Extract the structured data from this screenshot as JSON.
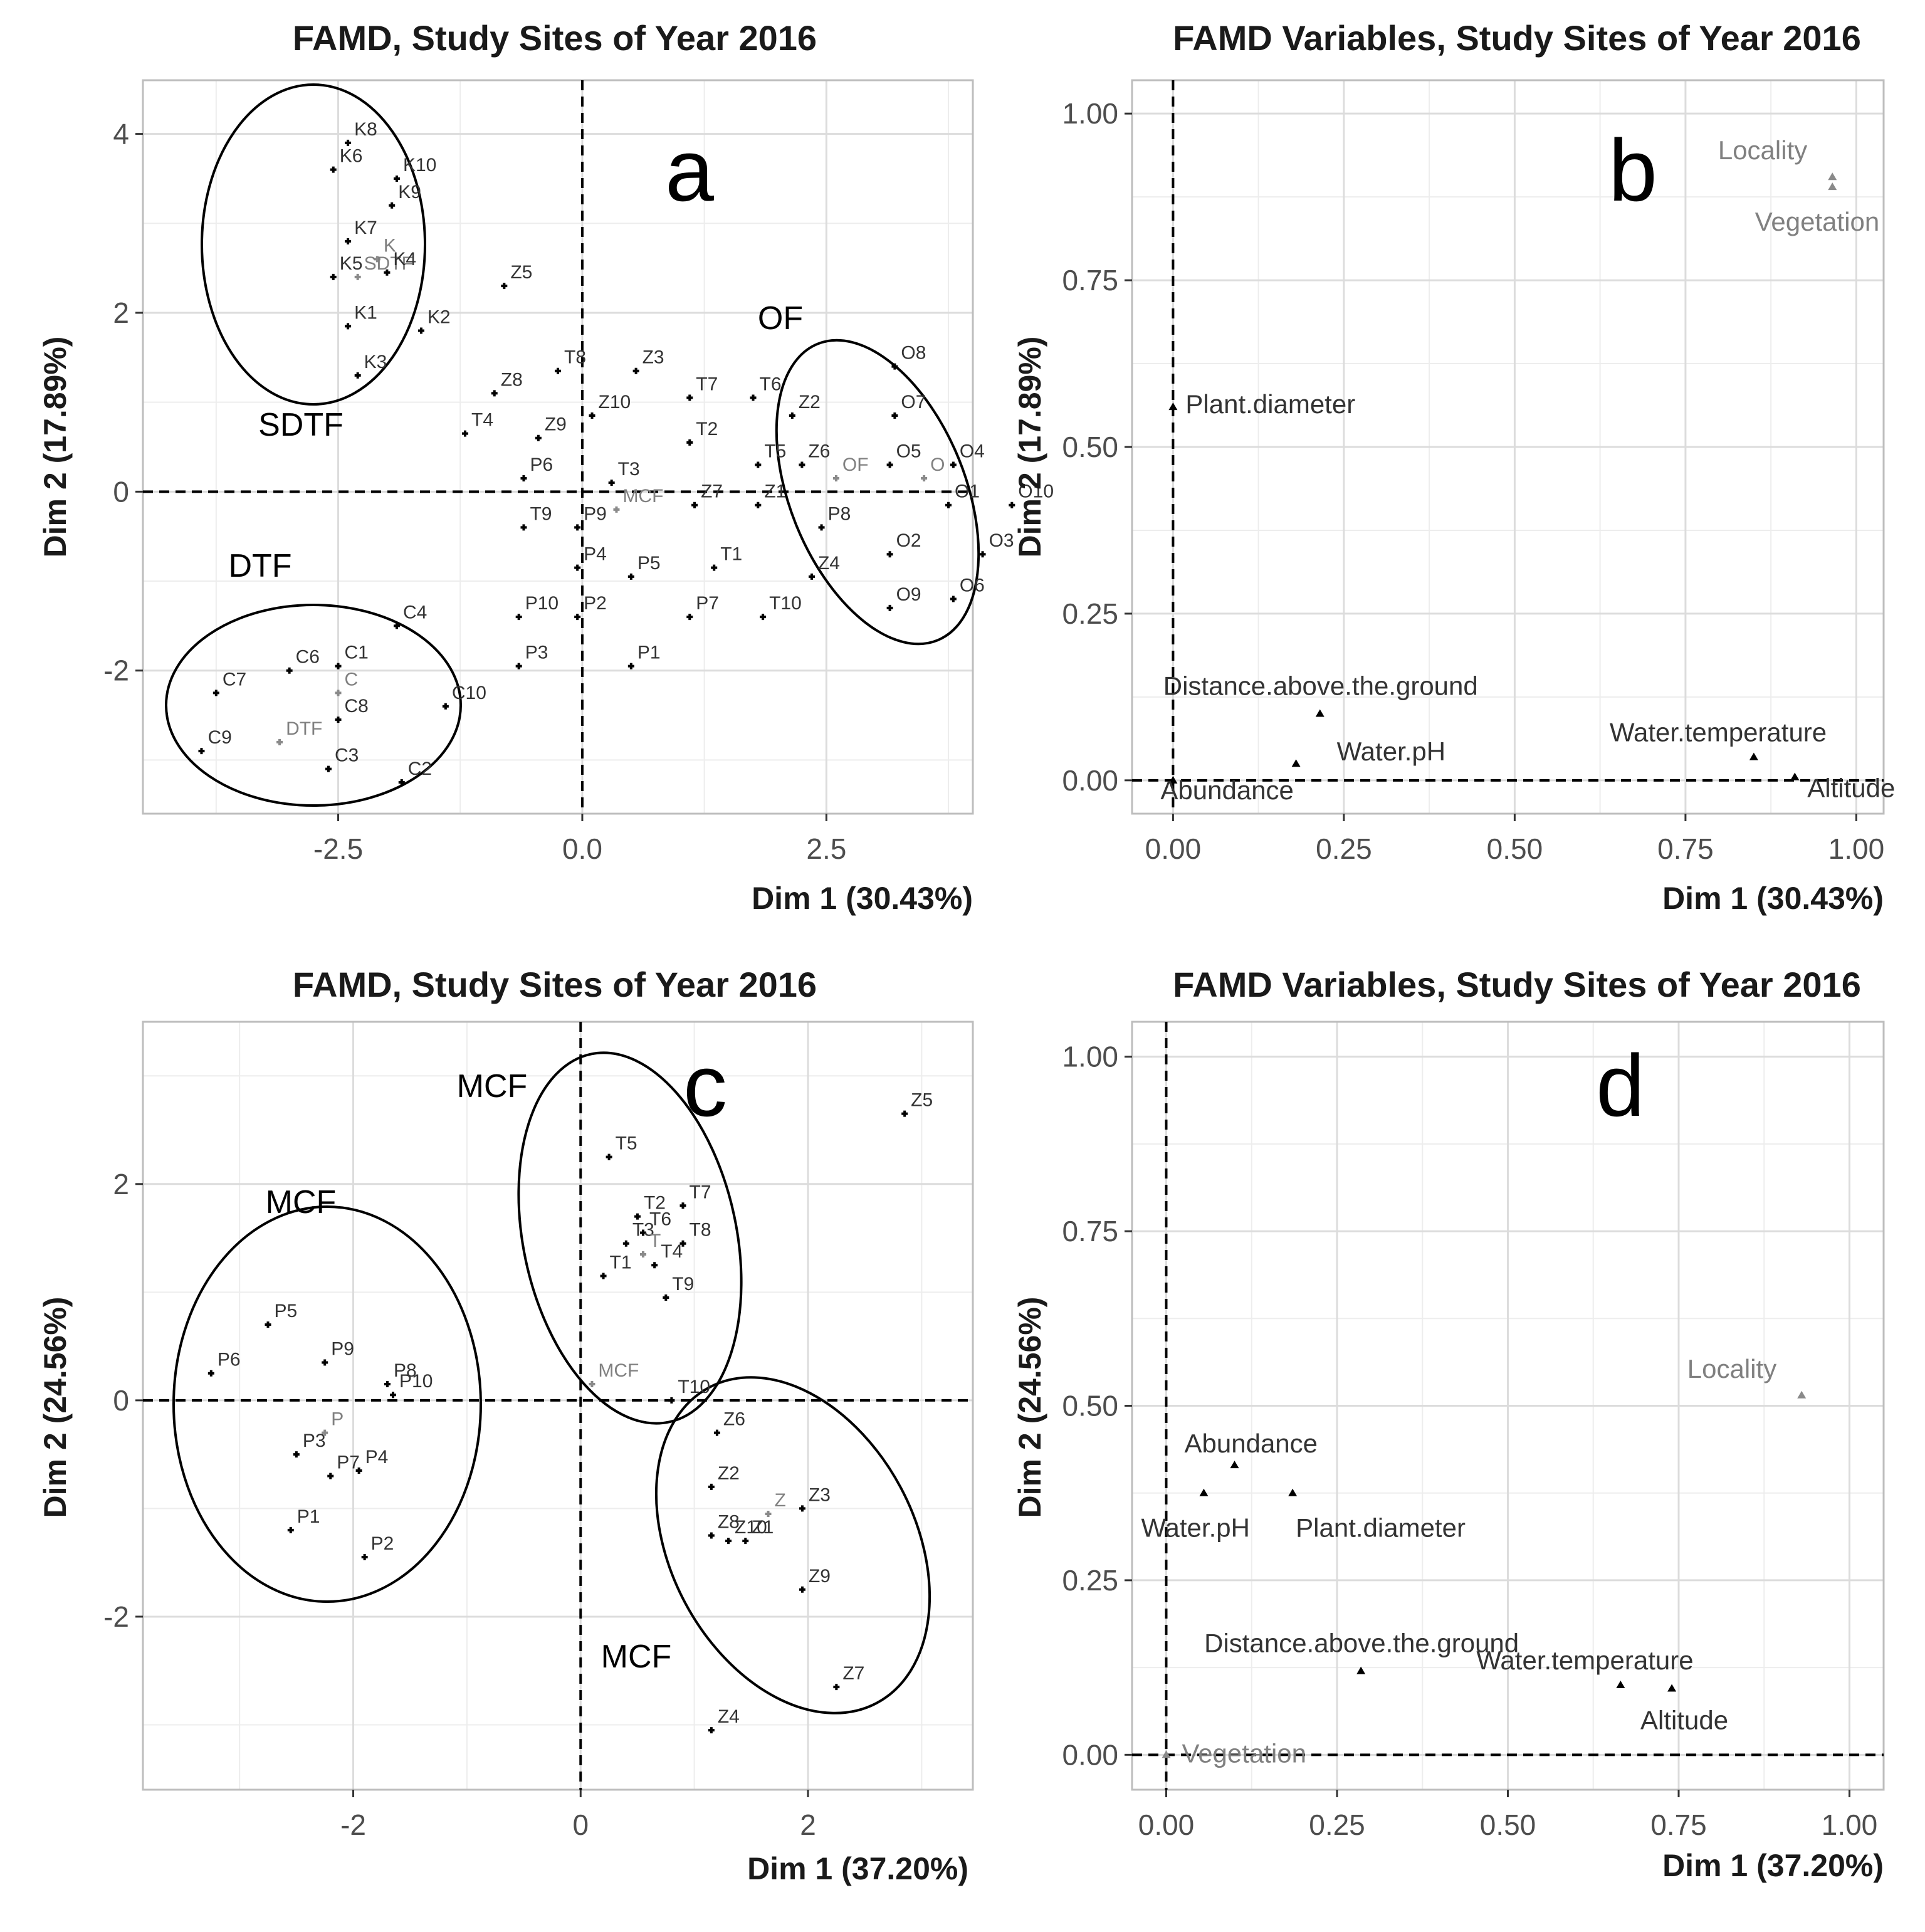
{
  "figure": "FAMD biplots, study sites of year 2016",
  "chart_data": [
    {
      "panel": "a",
      "type": "scatter",
      "title": "FAMD, Study Sites of Year 2016",
      "xlabel": "Dim 1 (30.43%)",
      "ylabel": "Dim 2 (17.89%)",
      "xlim": [
        -4.5,
        4.0
      ],
      "ylim": [
        -3.6,
        4.6
      ],
      "xticks": [
        -2.5,
        0.0,
        2.5
      ],
      "xtick_labels": [
        "-2.5",
        "0.0",
        "2.5"
      ],
      "yticks": [
        -2,
        0,
        2,
        4
      ],
      "ytick_labels": [
        "-2",
        "0",
        "2",
        "4"
      ],
      "grid": true,
      "panel_letter": "a",
      "points": [
        {
          "label": "K8",
          "x": -2.4,
          "y": 3.9
        },
        {
          "label": "K6",
          "x": -2.55,
          "y": 3.6
        },
        {
          "label": "K10",
          "x": -1.9,
          "y": 3.5
        },
        {
          "label": "K9",
          "x": -1.95,
          "y": 3.2
        },
        {
          "label": "K7",
          "x": -2.4,
          "y": 2.8
        },
        {
          "label": "K",
          "x": -2.1,
          "y": 2.6,
          "grey": true
        },
        {
          "label": "K5",
          "x": -2.55,
          "y": 2.4
        },
        {
          "label": "SDTF",
          "x": -2.3,
          "y": 2.4,
          "grey": true
        },
        {
          "label": "K4",
          "x": -2.0,
          "y": 2.45
        },
        {
          "label": "K1",
          "x": -2.4,
          "y": 1.85
        },
        {
          "label": "K2",
          "x": -1.65,
          "y": 1.8
        },
        {
          "label": "K3",
          "x": -2.3,
          "y": 1.3
        },
        {
          "label": "Z5",
          "x": -0.8,
          "y": 2.3
        },
        {
          "label": "OF",
          "x": 2.6,
          "y": 0.15,
          "grey": true
        },
        {
          "label": "O8",
          "x": 3.2,
          "y": 1.4
        },
        {
          "label": "O7",
          "x": 3.2,
          "y": 0.85
        },
        {
          "label": "O5",
          "x": 3.15,
          "y": 0.3
        },
        {
          "label": "O",
          "x": 3.5,
          "y": 0.15,
          "grey": true
        },
        {
          "label": "O4",
          "x": 3.8,
          "y": 0.3
        },
        {
          "label": "O1",
          "x": 3.75,
          "y": -0.15
        },
        {
          "label": "O10",
          "x": 4.4,
          "y": -0.15
        },
        {
          "label": "O2",
          "x": 3.15,
          "y": -0.7
        },
        {
          "label": "O3",
          "x": 4.1,
          "y": -0.7
        },
        {
          "label": "O9",
          "x": 3.15,
          "y": -1.3
        },
        {
          "label": "O6",
          "x": 3.8,
          "y": -1.2
        },
        {
          "label": "T8",
          "x": -0.25,
          "y": 1.35
        },
        {
          "label": "Z3",
          "x": 0.55,
          "y": 1.35
        },
        {
          "label": "T7",
          "x": 1.1,
          "y": 1.05
        },
        {
          "label": "T6",
          "x": 1.75,
          "y": 1.05
        },
        {
          "label": "Z8",
          "x": -0.9,
          "y": 1.1
        },
        {
          "label": "Z10",
          "x": 0.1,
          "y": 0.85
        },
        {
          "label": "Z2",
          "x": 2.15,
          "y": 0.85
        },
        {
          "label": "T4",
          "x": -1.2,
          "y": 0.65
        },
        {
          "label": "Z9",
          "x": -0.45,
          "y": 0.6
        },
        {
          "label": "T2",
          "x": 1.1,
          "y": 0.55
        },
        {
          "label": "T5",
          "x": 1.8,
          "y": 0.3
        },
        {
          "label": "Z6",
          "x": 2.25,
          "y": 0.3
        },
        {
          "label": "P6",
          "x": -0.6,
          "y": 0.15
        },
        {
          "label": "T3",
          "x": 0.3,
          "y": 0.1
        },
        {
          "label": "MCF",
          "x": 0.35,
          "y": -0.2,
          "grey": true
        },
        {
          "label": "Z7",
          "x": 1.15,
          "y": -0.15
        },
        {
          "label": "Z1",
          "x": 1.8,
          "y": -0.15
        },
        {
          "label": "P8",
          "x": 2.45,
          "y": -0.4
        },
        {
          "label": "T9",
          "x": -0.6,
          "y": -0.4
        },
        {
          "label": "P9",
          "x": -0.05,
          "y": -0.4
        },
        {
          "label": "P4",
          "x": -0.05,
          "y": -0.85
        },
        {
          "label": "P5",
          "x": 0.5,
          "y": -0.95
        },
        {
          "label": "T1",
          "x": 1.35,
          "y": -0.85
        },
        {
          "label": "Z4",
          "x": 2.35,
          "y": -0.95
        },
        {
          "label": "P10",
          "x": -0.65,
          "y": -1.4
        },
        {
          "label": "P2",
          "x": -0.05,
          "y": -1.4
        },
        {
          "label": "P7",
          "x": 1.1,
          "y": -1.4
        },
        {
          "label": "T10",
          "x": 1.85,
          "y": -1.4
        },
        {
          "label": "P3",
          "x": -0.65,
          "y": -1.95
        },
        {
          "label": "P1",
          "x": 0.5,
          "y": -1.95
        },
        {
          "label": "C4",
          "x": -1.9,
          "y": -1.5
        },
        {
          "label": "C6",
          "x": -3.0,
          "y": -2.0
        },
        {
          "label": "C1",
          "x": -2.5,
          "y": -1.95
        },
        {
          "label": "C7",
          "x": -3.75,
          "y": -2.25
        },
        {
          "label": "C",
          "x": -2.5,
          "y": -2.25,
          "grey": true
        },
        {
          "label": "C10",
          "x": -1.4,
          "y": -2.4
        },
        {
          "label": "C8",
          "x": -2.5,
          "y": -2.55
        },
        {
          "label": "DTF",
          "x": -3.1,
          "y": -2.8,
          "grey": true
        },
        {
          "label": "C9",
          "x": -3.9,
          "y": -2.9
        },
        {
          "label": "C3",
          "x": -2.6,
          "y": -3.1
        },
        {
          "label": "C2",
          "x": -1.85,
          "y": -3.25
        }
      ],
      "groups": [
        "SDTF",
        "OF",
        "DTF"
      ]
    },
    {
      "panel": "b",
      "type": "scatter",
      "title": "FAMD Variables, Study Sites of Year 2016",
      "xlabel": "Dim 1 (30.43%)",
      "ylabel": "Dim 2 (17.89%)",
      "xlim": [
        -0.06,
        1.04
      ],
      "ylim": [
        -0.05,
        1.05
      ],
      "xticks": [
        0.0,
        0.25,
        0.5,
        0.75,
        1.0
      ],
      "xtick_labels": [
        "0.00",
        "0.25",
        "0.50",
        "0.75",
        "1.00"
      ],
      "yticks": [
        0.0,
        0.25,
        0.5,
        0.75,
        1.0
      ],
      "ytick_labels": [
        "0.00",
        "0.25",
        "0.50",
        "0.75",
        "1.00"
      ],
      "grid": true,
      "panel_letter": "b",
      "points": [
        {
          "label": "Locality",
          "x": 0.965,
          "y": 0.905,
          "grey": true
        },
        {
          "label": "Vegetation",
          "x": 0.965,
          "y": 0.89,
          "grey": true
        },
        {
          "label": "Plant.diameter",
          "x": 0.0,
          "y": 0.56
        },
        {
          "label": "Distance.above.the.ground",
          "x": 0.215,
          "y": 0.1
        },
        {
          "label": "Water.pH",
          "x": 0.18,
          "y": 0.025
        },
        {
          "label": "Water.temperature",
          "x": 0.85,
          "y": 0.035
        },
        {
          "label": "Abundance",
          "x": 0.0,
          "y": 0.0
        },
        {
          "label": "Altitude",
          "x": 0.91,
          "y": 0.005
        }
      ]
    },
    {
      "panel": "c",
      "type": "scatter",
      "title": "FAMD, Study Sites of Year 2016",
      "xlabel": "Dim 1 (37.20%)",
      "ylabel": "Dim 2 (24.56%)",
      "xlim": [
        -3.85,
        3.45
      ],
      "ylim": [
        -3.6,
        3.5
      ],
      "xticks": [
        -2,
        0,
        2
      ],
      "xtick_labels": [
        "-2",
        "0",
        "2"
      ],
      "yticks": [
        -2,
        0,
        2
      ],
      "ytick_labels": [
        "-2",
        "0",
        "2"
      ],
      "grid": true,
      "panel_letter": "c",
      "points": [
        {
          "label": "Z5",
          "x": 2.85,
          "y": 2.65
        },
        {
          "label": "T5",
          "x": 0.25,
          "y": 2.25
        },
        {
          "label": "T2",
          "x": 0.5,
          "y": 1.7
        },
        {
          "label": "T7",
          "x": 0.9,
          "y": 1.8
        },
        {
          "label": "T6",
          "x": 0.55,
          "y": 1.55
        },
        {
          "label": "T3",
          "x": 0.4,
          "y": 1.45
        },
        {
          "label": "T",
          "x": 0.55,
          "y": 1.35,
          "grey": true
        },
        {
          "label": "T8",
          "x": 0.9,
          "y": 1.45
        },
        {
          "label": "T4",
          "x": 0.65,
          "y": 1.25
        },
        {
          "label": "T1",
          "x": 0.2,
          "y": 1.15
        },
        {
          "label": "T9",
          "x": 0.75,
          "y": 0.95
        },
        {
          "label": "MCF",
          "x": 0.1,
          "y": 0.15,
          "grey": true
        },
        {
          "label": "T10",
          "x": 0.8,
          "y": 0.0
        },
        {
          "label": "P5",
          "x": -2.75,
          "y": 0.7
        },
        {
          "label": "P6",
          "x": -3.25,
          "y": 0.25
        },
        {
          "label": "P8",
          "x": -1.7,
          "y": 0.15
        },
        {
          "label": "P9",
          "x": -2.25,
          "y": 0.35
        },
        {
          "label": "P10",
          "x": -1.65,
          "y": 0.05
        },
        {
          "label": "P3",
          "x": -2.5,
          "y": -0.5
        },
        {
          "label": "P",
          "x": -2.25,
          "y": -0.3,
          "grey": true
        },
        {
          "label": "P4",
          "x": -1.95,
          "y": -0.65
        },
        {
          "label": "P7",
          "x": -2.2,
          "y": -0.7
        },
        {
          "label": "P1",
          "x": -2.55,
          "y": -1.2
        },
        {
          "label": "P2",
          "x": -1.9,
          "y": -1.45
        },
        {
          "label": "Z2",
          "x": 1.15,
          "y": -0.8
        },
        {
          "label": "Z6",
          "x": 1.2,
          "y": -0.3
        },
        {
          "label": "Z3",
          "x": 1.95,
          "y": -1.0
        },
        {
          "label": "Z8",
          "x": 1.15,
          "y": -1.25
        },
        {
          "label": "Z",
          "x": 1.65,
          "y": -1.05,
          "grey": true
        },
        {
          "label": "Z10",
          "x": 1.3,
          "y": -1.3
        },
        {
          "label": "Z1",
          "x": 1.45,
          "y": -1.3
        },
        {
          "label": "Z9",
          "x": 1.95,
          "y": -1.75
        },
        {
          "label": "Z7",
          "x": 2.25,
          "y": -2.65
        },
        {
          "label": "Z4",
          "x": 1.15,
          "y": -3.05
        }
      ],
      "groups": [
        "MCF",
        "MCF",
        "MCF"
      ]
    },
    {
      "panel": "d",
      "type": "scatter",
      "title": "FAMD Variables, Study Sites of Year 2016",
      "xlabel": "Dim 1 (37.20%)",
      "ylabel": "Dim 2 (24.56%)",
      "xlim": [
        -0.05,
        1.05
      ],
      "ylim": [
        -0.05,
        1.05
      ],
      "xticks": [
        0.0,
        0.25,
        0.5,
        0.75,
        1.0
      ],
      "xtick_labels": [
        "0.00",
        "0.25",
        "0.50",
        "0.75",
        "1.00"
      ],
      "yticks": [
        0.0,
        0.25,
        0.5,
        0.75,
        1.0
      ],
      "ytick_labels": [
        "0.00",
        "0.25",
        "0.50",
        "0.75",
        "1.00"
      ],
      "grid": true,
      "panel_letter": "d",
      "points": [
        {
          "label": "Locality",
          "x": 0.93,
          "y": 0.515,
          "grey": true
        },
        {
          "label": "Abundance",
          "x": 0.1,
          "y": 0.415
        },
        {
          "label": "Water.pH",
          "x": 0.055,
          "y": 0.375
        },
        {
          "label": "Plant.diameter",
          "x": 0.185,
          "y": 0.375
        },
        {
          "label": "Distance.above.the.ground",
          "x": 0.285,
          "y": 0.12
        },
        {
          "label": "Water.temperature",
          "x": 0.665,
          "y": 0.1
        },
        {
          "label": "Altitude",
          "x": 0.74,
          "y": 0.095
        },
        {
          "label": "Vegetation",
          "x": 0.0,
          "y": 0.0,
          "grey": true
        }
      ]
    }
  ],
  "group_labels": {
    "a": [
      "SDTF",
      "OF",
      "DTF"
    ],
    "c": [
      "MCF",
      "MCF",
      "MCF"
    ]
  }
}
